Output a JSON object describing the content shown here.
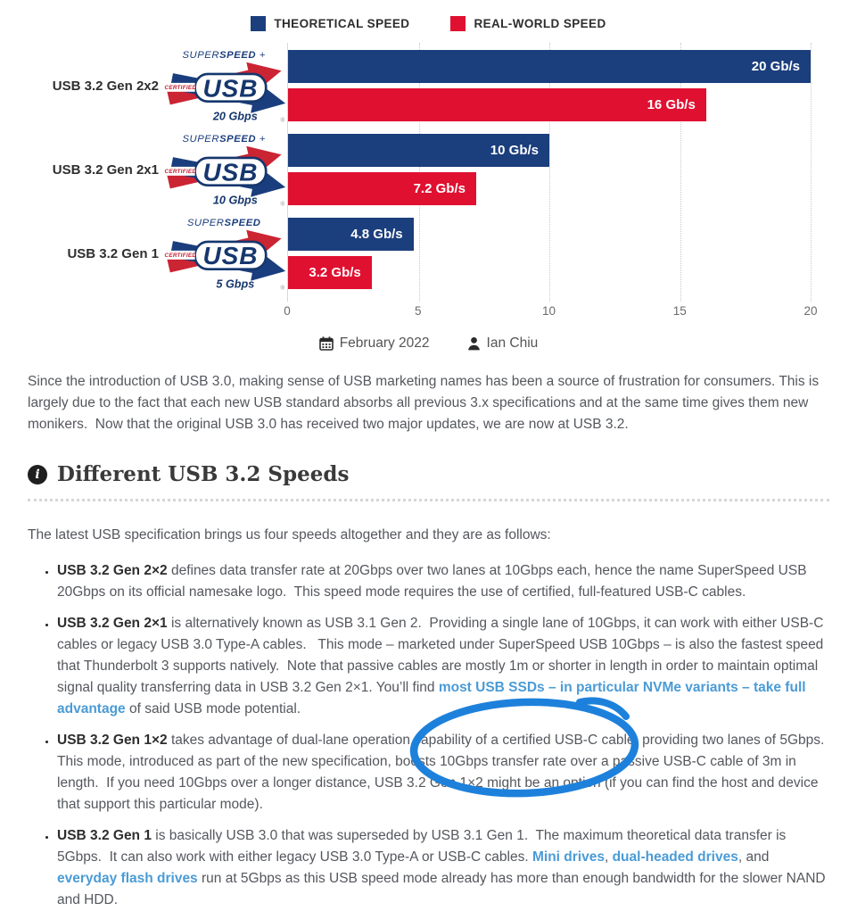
{
  "legend": {
    "items": [
      {
        "label": "THEORETICAL SPEED",
        "color": "#1b3e7d"
      },
      {
        "label": "REAL-WORLD SPEED",
        "color": "#e01031"
      }
    ]
  },
  "chart_data": {
    "type": "bar",
    "orientation": "horizontal",
    "categories": [
      "USB 3.2 Gen 2x2",
      "USB 3.2 Gen 2x1",
      "USB 3.2 Gen 1"
    ],
    "series": [
      {
        "name": "THEORETICAL SPEED",
        "color": "#1b3e7d",
        "values": [
          20,
          10,
          4.8
        ]
      },
      {
        "name": "REAL-WORLD SPEED",
        "color": "#e01031",
        "values": [
          16,
          7.2,
          3.2
        ]
      }
    ],
    "bar_labels": [
      [
        "20 Gb/s",
        "16 Gb/s"
      ],
      [
        "10 Gb/s",
        "7.2 Gb/s"
      ],
      [
        "4.8 Gb/s",
        "3.2 Gb/s"
      ]
    ],
    "title": "",
    "xlabel": "",
    "ylabel": "",
    "xlim": [
      0,
      20
    ],
    "x_ticks": [
      "0",
      "5",
      "10",
      "15",
      "20"
    ],
    "grid": "dotted-vertical",
    "legend_position": "top"
  },
  "logos": [
    {
      "super": "SUPER",
      "speed": "SPEED",
      "plus": "+",
      "certified": "CERTIFIED",
      "usb": "USB",
      "gbps": "20 Gbps",
      "reg": "®"
    },
    {
      "super": "SUPER",
      "speed": "SPEED",
      "plus": "+",
      "certified": "CERTIFIED",
      "usb": "USB",
      "gbps": "10 Gbps",
      "reg": "®"
    },
    {
      "super": "SUPER",
      "speed": "SPEED",
      "plus": "",
      "certified": "CERTIFIED",
      "usb": "USB",
      "gbps": "5 Gbps",
      "reg": "®"
    }
  ],
  "meta": {
    "date": "February 2022",
    "author": "Ian Chiu"
  },
  "intro_paragraph": "Since the introduction of USB 3.0, making sense of USB marketing names has been a source of frustration for consumers. This is largely due to the fact that each new USB standard absorbs all previous 3.x specifications and at the same time gives them new monikers.  Now that the original USB 3.0 has received two major updates, we are now at USB 3.2.",
  "section": {
    "info_glyph": "i",
    "heading": "Different USB 3.2 Speeds",
    "lead": "The latest USB specification brings us four speeds altogether and they are as follows:"
  },
  "bullets": [
    {
      "segments": [
        {
          "t": "USB 3.2 Gen 2×2",
          "s": "b"
        },
        {
          "t": " defines data transfer rate at 20Gbps over two lanes at 10Gbps each, hence the name SuperSpeed USB 20Gbps on its official namesake logo.  This speed mode requires the use of certified, full-featured USB-C cables.",
          "s": "n"
        }
      ]
    },
    {
      "segments": [
        {
          "t": "USB 3.2 Gen 2×1",
          "s": "b"
        },
        {
          "t": " is alternatively known as USB 3.1 Gen 2.  Providing a single lane of 10Gbps, it can work with either USB-C cables or legacy USB 3.0 Type-A cables.   This mode – marketed under SuperSpeed USB 10Gbps – is also the fastest speed that Thunderbolt 3 supports natively.  Note that passive cables are mostly 1m or shorter in length in order to maintain optimal signal quality transferring data in USB 3.2 Gen 2×1. You’ll find ",
          "s": "n"
        },
        {
          "t": "most USB SSDs – in particular NVMe variants – take full advantage",
          "s": "l"
        },
        {
          "t": " of said USB mode potential.",
          "s": "n"
        }
      ]
    },
    {
      "segments": [
        {
          "t": "USB 3.2 Gen 1×2",
          "s": "b"
        },
        {
          "t": " takes advantage of dual-lane operation capability of a certified USB-C cable, providing two lanes of 5Gbps.  This mode, introduced as part of the new specification, boosts 10Gbps transfer rate over a passive USB-C cable of 3m in length.  If you need 10Gbps over a longer distance, USB 3.2 Gen 1×2 might be an option (if you can find the host and device that support this particular mode).",
          "s": "n"
        }
      ]
    },
    {
      "segments": [
        {
          "t": "USB 3.2 Gen 1",
          "s": "b"
        },
        {
          "t": " is basically USB 3.0 that was superseded by USB 3.1 Gen 1.  The maximum theoretical data transfer is 5Gbps.  It can also work with either legacy USB 3.0 Type-A or USB-C cables. ",
          "s": "n"
        },
        {
          "t": "Mini drives",
          "s": "l"
        },
        {
          "t": ", ",
          "s": "n"
        },
        {
          "t": "dual-headed drives",
          "s": "l"
        },
        {
          "t": ", and ",
          "s": "n"
        },
        {
          "t": "everyday flash drives",
          "s": "l"
        },
        {
          "t": " run at 5Gbps as this USB speed mode already has more than enough bandwidth for the slower NAND and HDD.",
          "s": "n"
        }
      ]
    }
  ],
  "annotation": {
    "shape": "hand-drawn-ellipse",
    "color": "#1d81dc",
    "circled_text": "USB 3.2 Gen 1×2 might be an option"
  }
}
